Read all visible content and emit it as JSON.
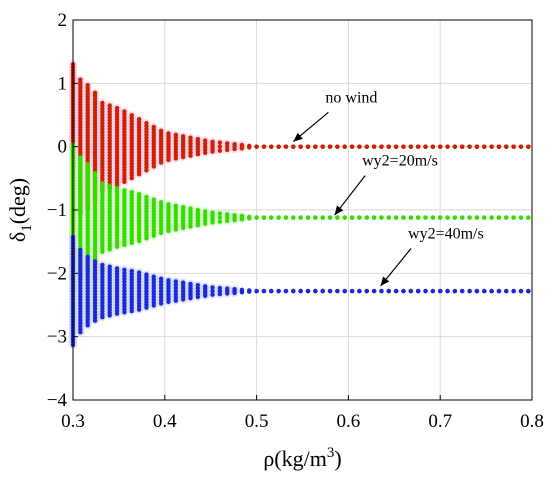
{
  "chart_data": {
    "type": "scatter",
    "title": "",
    "xlabel": "ρ(kg/m³)",
    "ylabel": "δ1(deg)",
    "xlim": [
      0.3,
      0.8
    ],
    "ylim": [
      -4,
      2
    ],
    "xticks": [
      0.3,
      0.4,
      0.5,
      0.6,
      0.7,
      0.8
    ],
    "yticks": [
      -4,
      -3,
      -2,
      -1,
      0,
      1,
      2
    ],
    "xtick_labels": [
      "0.3",
      "0.4",
      "0.5",
      "0.6",
      "0.7",
      "0.8"
    ],
    "ytick_labels": [
      "−4",
      "−3",
      "−2",
      "−1",
      "0",
      "1",
      "2"
    ],
    "grid": true,
    "x_spacing": 0.008,
    "series": [
      {
        "name": "no wind",
        "color": "#cc2200",
        "halo_color": "#f9c9e6",
        "center": 0.0,
        "envelope_half_width": [
          [
            0.3,
            1.3
          ],
          [
            0.31,
            1.0
          ],
          [
            0.32,
            0.95
          ],
          [
            0.33,
            0.7
          ],
          [
            0.35,
            0.6
          ],
          [
            0.37,
            0.45
          ],
          [
            0.4,
            0.22
          ],
          [
            0.45,
            0.08
          ],
          [
            0.5,
            0.0
          ],
          [
            0.8,
            0.0
          ]
        ]
      },
      {
        "name": "wy2=20m/s",
        "color": "#33dd00",
        "halo_color": "#d4f3c4",
        "center": -1.12,
        "envelope_half_width": [
          [
            0.3,
            1.15
          ],
          [
            0.31,
            0.9
          ],
          [
            0.32,
            0.8
          ],
          [
            0.33,
            0.55
          ],
          [
            0.35,
            0.45
          ],
          [
            0.37,
            0.38
          ],
          [
            0.4,
            0.22
          ],
          [
            0.45,
            0.08
          ],
          [
            0.5,
            0.0
          ],
          [
            0.8,
            0.0
          ]
        ]
      },
      {
        "name": "wy2=40m/s",
        "color": "#1a2bd6",
        "halo_color": "#cfd3f5",
        "center": -2.28,
        "envelope_half_width": [
          [
            0.3,
            0.85
          ],
          [
            0.31,
            0.6
          ],
          [
            0.32,
            0.5
          ],
          [
            0.33,
            0.42
          ],
          [
            0.35,
            0.35
          ],
          [
            0.37,
            0.3
          ],
          [
            0.4,
            0.18
          ],
          [
            0.45,
            0.06
          ],
          [
            0.5,
            0.0
          ],
          [
            0.8,
            0.0
          ]
        ]
      }
    ],
    "annotations": [
      {
        "text": "no wind",
        "arrow_tip": [
          0.54,
          0.08
        ],
        "label_at": [
          0.6,
          0.7
        ]
      },
      {
        "text": "wy2=20m/s",
        "arrow_tip": [
          0.585,
          -1.08
        ],
        "label_at": [
          0.64,
          -0.3
        ]
      },
      {
        "text": "wy2=40m/s",
        "arrow_tip": [
          0.635,
          -2.2
        ],
        "label_at": [
          0.69,
          -1.45
        ]
      }
    ]
  }
}
